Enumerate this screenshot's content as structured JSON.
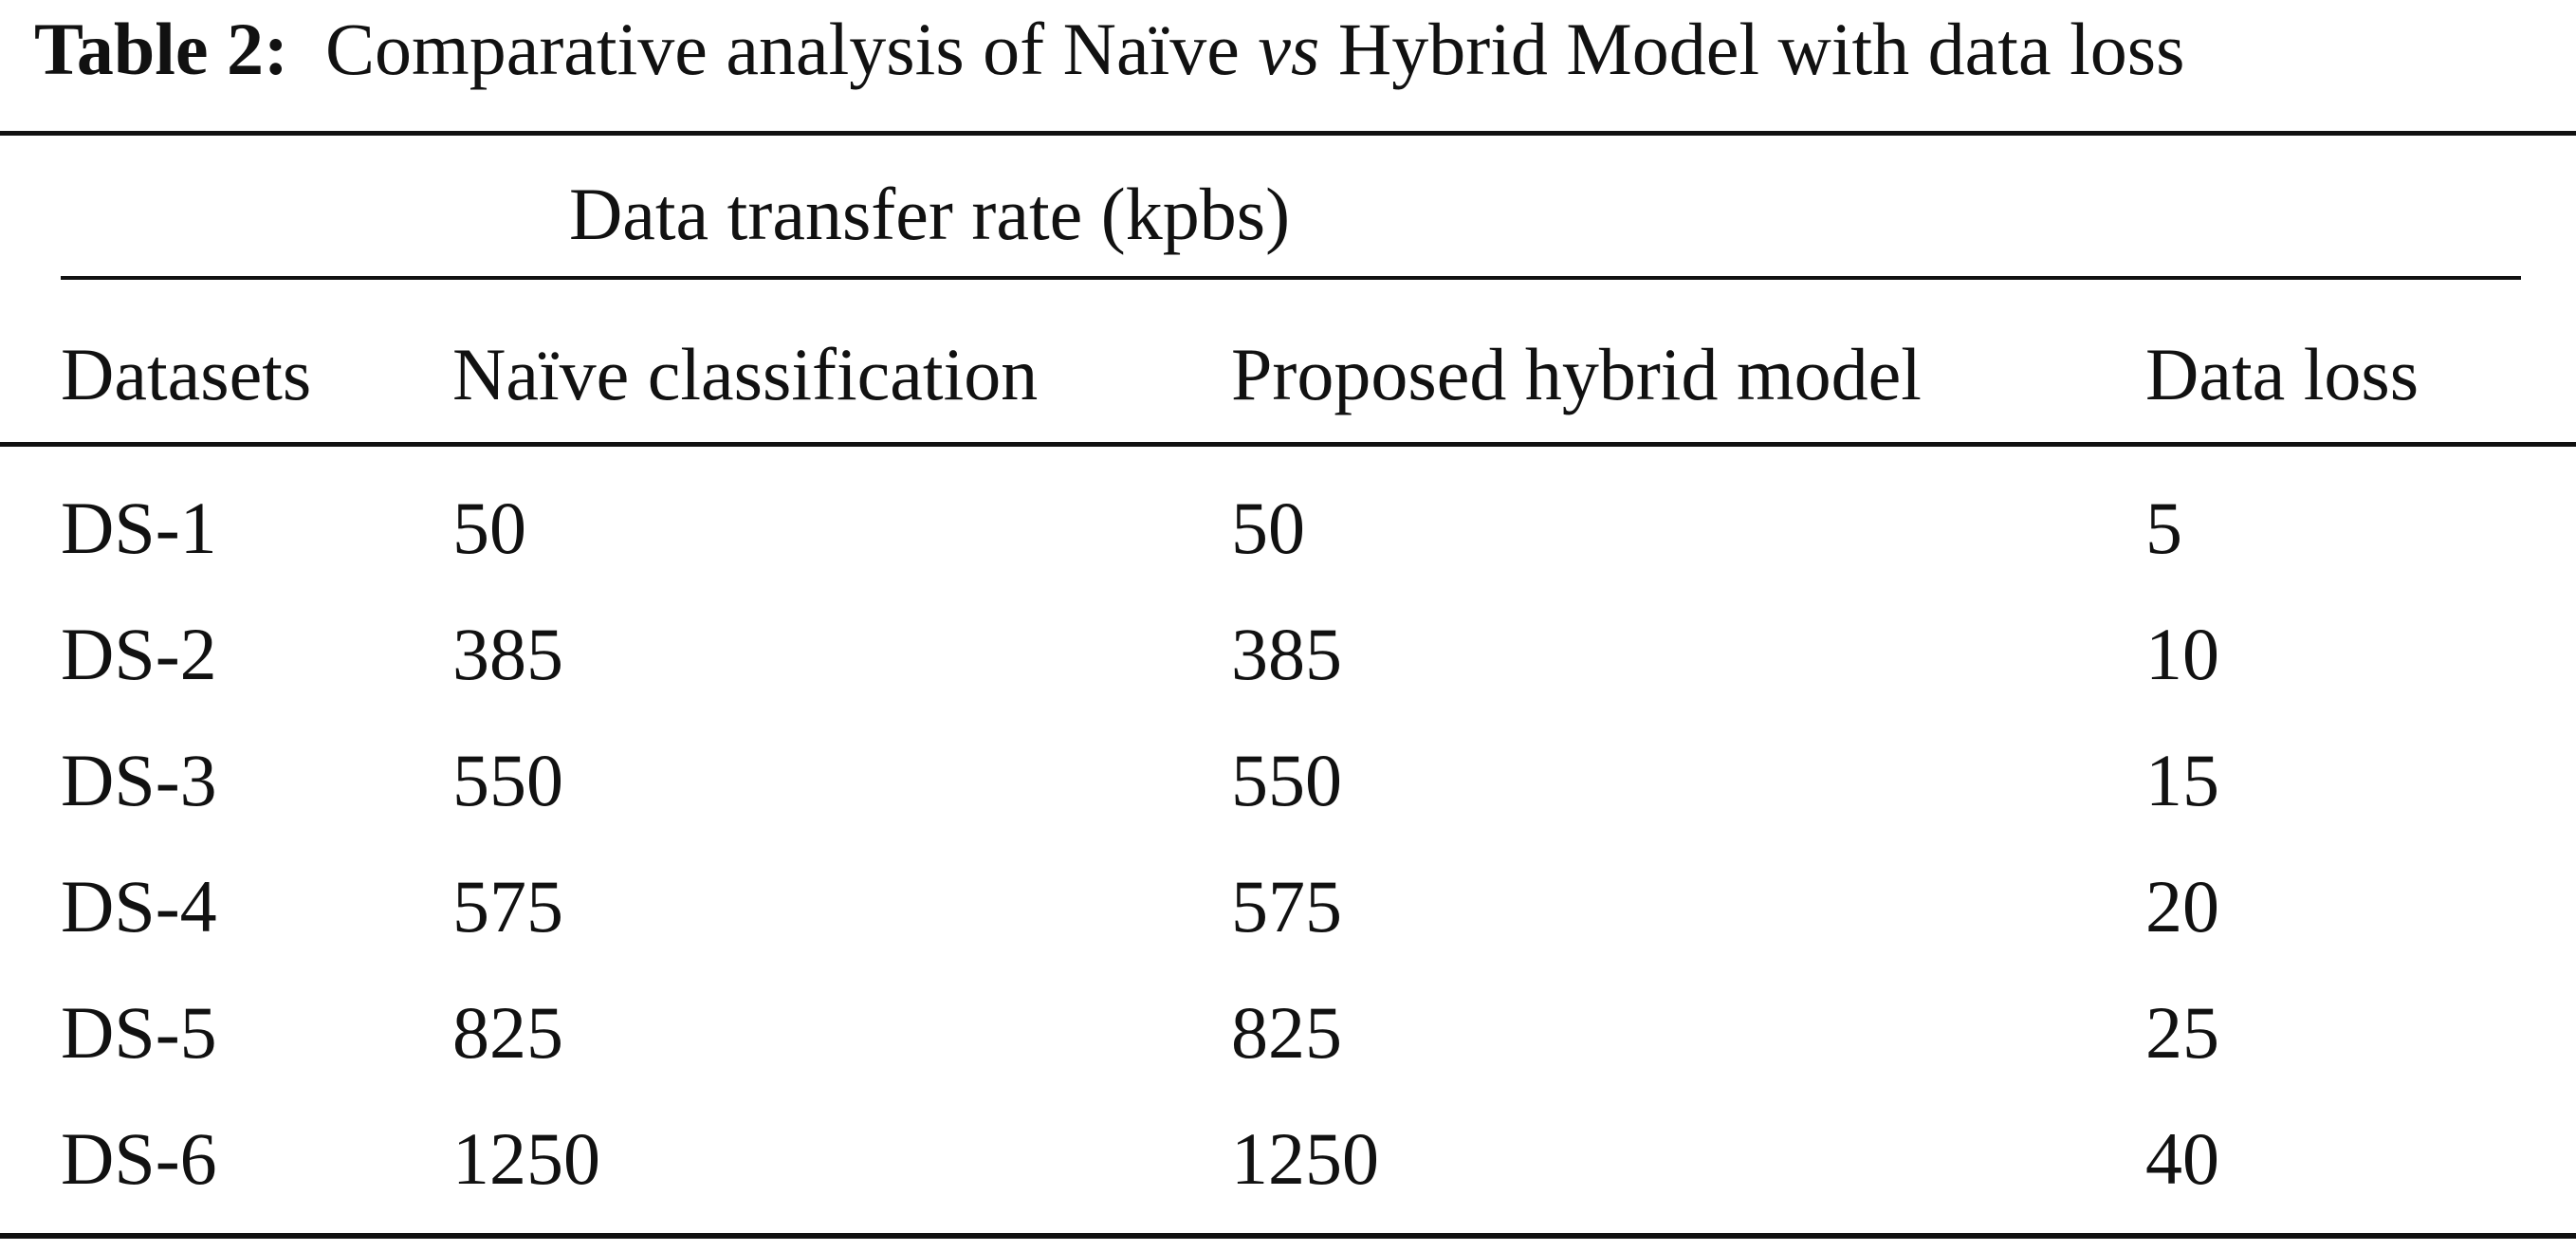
{
  "caption": {
    "label": "Table 2:",
    "text_before": "Comparative analysis of Naïve ",
    "text_italic": "vs",
    "text_after": " Hybrid Model with data loss"
  },
  "table": {
    "group_header": "Data transfer rate (kpbs)",
    "columns": [
      "Datasets",
      "Naïve classification",
      "Proposed hybrid model",
      "Data loss"
    ],
    "rows": [
      [
        "DS-1",
        "50",
        "50",
        "5"
      ],
      [
        "DS-2",
        "385",
        "385",
        "10"
      ],
      [
        "DS-3",
        "550",
        "550",
        "15"
      ],
      [
        "DS-4",
        "575",
        "575",
        "20"
      ],
      [
        "DS-5",
        "825",
        "825",
        "25"
      ],
      [
        "DS-6",
        "1250",
        "1250",
        "40"
      ]
    ]
  }
}
